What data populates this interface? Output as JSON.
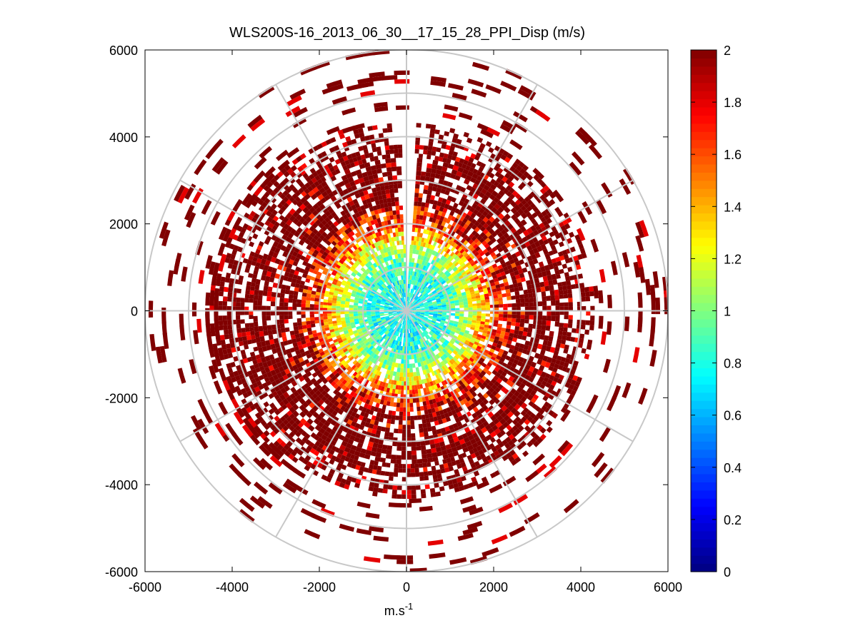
{
  "chart_data": {
    "type": "heatmap",
    "subtype": "polar PPI scan",
    "title": "WLS200S-16_2013_06_30__17_15_28_PPI_Disp (m/s)",
    "xlabel": "m.s",
    "xlabel_superscript": "-1",
    "ylabel": "",
    "xlim": [
      -6000,
      6000
    ],
    "ylim": [
      -6000,
      6000
    ],
    "xticks": [
      -6000,
      -4000,
      -2000,
      0,
      2000,
      4000,
      6000
    ],
    "yticks": [
      -6000,
      -4000,
      -2000,
      0,
      2000,
      4000,
      6000
    ],
    "xtick_labels": [
      "-6000",
      "-4000",
      "-2000",
      "0",
      "2000",
      "4000",
      "6000"
    ],
    "ytick_labels": [
      "-6000",
      "-4000",
      "-2000",
      "0",
      "2000",
      "4000",
      "6000"
    ],
    "range_rings": [
      1000,
      2000,
      3000,
      4000,
      5000,
      6000
    ],
    "radial_spokes_deg": [
      0,
      30,
      60,
      90,
      120,
      150,
      180,
      210,
      240,
      270,
      300,
      330
    ],
    "grid": true,
    "colormap": "jet",
    "color_range": [
      0,
      2
    ],
    "colorbar_ticks": [
      0,
      0.2,
      0.4,
      0.6,
      0.8,
      1,
      1.2,
      1.4,
      1.6,
      1.8,
      2
    ],
    "colorbar_labels": [
      "0",
      "0.2",
      "0.4",
      "0.6",
      "0.8",
      "1",
      "1.2",
      "1.4",
      "1.6",
      "1.8",
      "2"
    ],
    "colorbar_location": "right",
    "value_profile": [
      {
        "range_m": 0,
        "typical_value": 0.75
      },
      {
        "range_m": 1000,
        "typical_value": 0.85
      },
      {
        "range_m": 1500,
        "typical_value": 1.2
      },
      {
        "range_m": 2000,
        "typical_value": 1.7
      },
      {
        "range_m": 3000,
        "typical_value": 1.95
      },
      {
        "range_m": 4000,
        "typical_value": 2.0
      },
      {
        "range_m": 5200,
        "typical_value": 2.0
      }
    ],
    "data_extent_max_range_m": 6000,
    "gap_azimuths_deg": [
      359,
      3
    ]
  }
}
